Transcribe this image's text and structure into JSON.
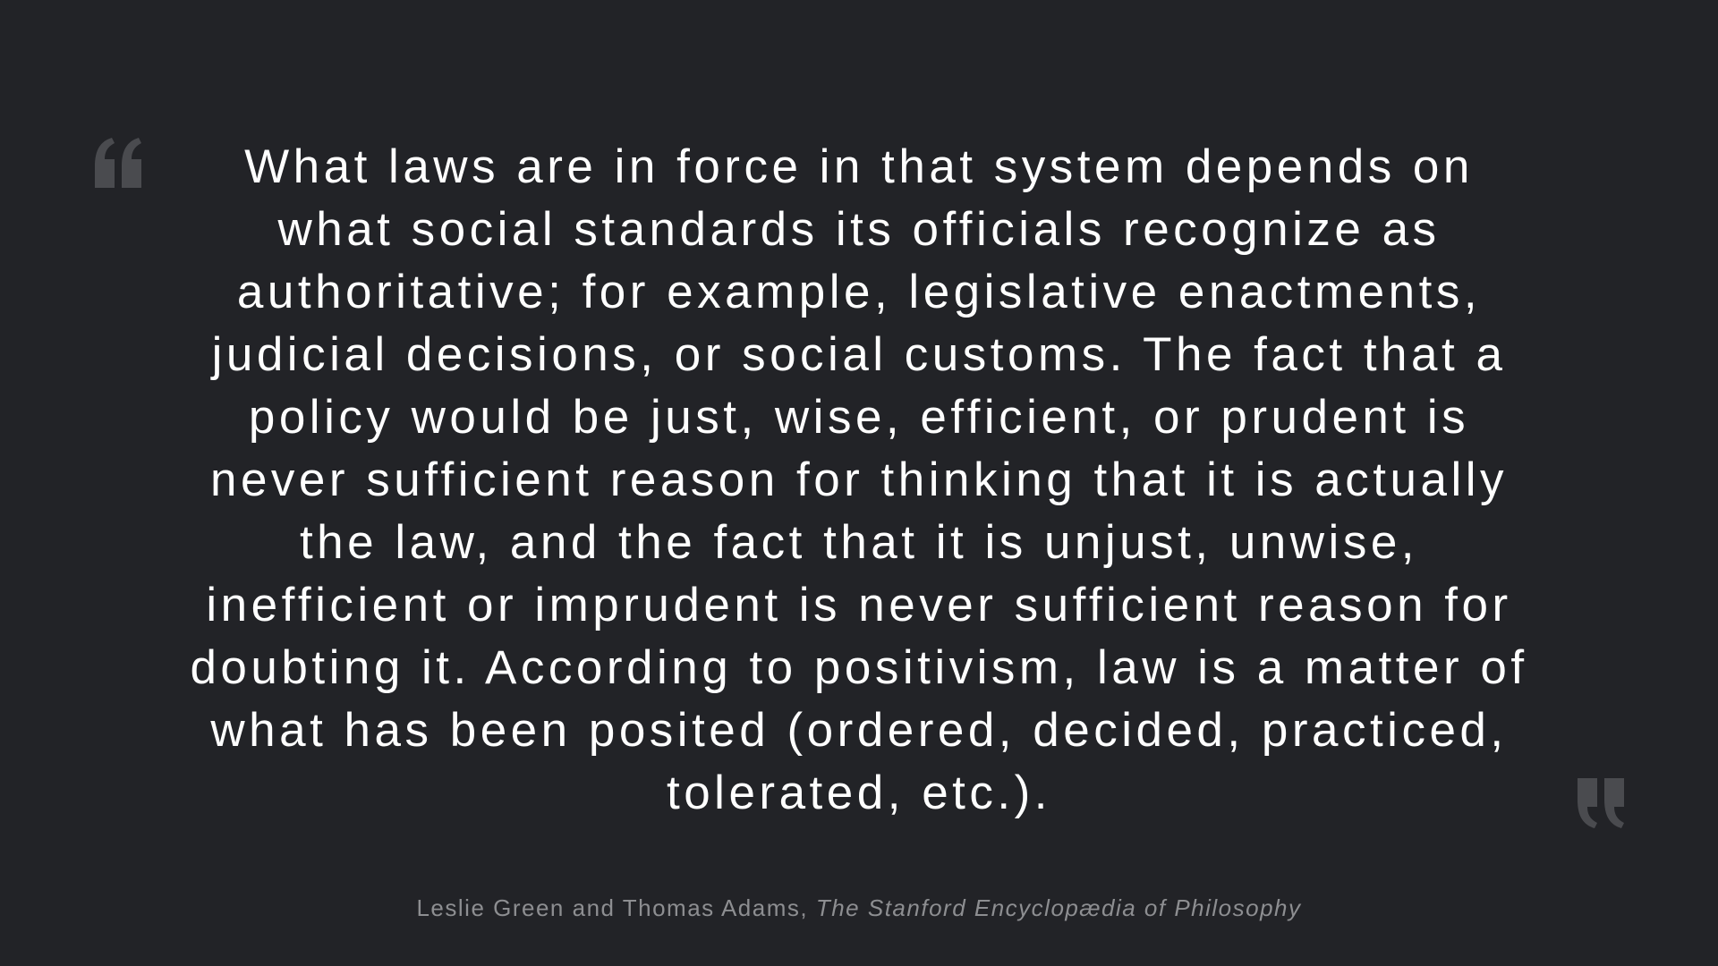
{
  "quote": {
    "text": "What laws are in force in that system depends on what social standards its officials recognize as authoritative; for example, legislative enactments, judicial decisions, or social customs. The fact that a policy would be just, wise, efficient, or prudent is never sufficient reason for thinking that it is actually the law, and the fact that it is unjust, unwise, inefficient or imprudent is never sufficient reason for doubting it. According to positivism, law is a matter of what has been posited (ordered, decided, practiced, tolerated, etc.).",
    "authors": "Leslie Green and Thomas Adams,",
    "source": "The Stanford Encyclopædia of Philosophy"
  },
  "icons": {
    "open": "open-quote-icon",
    "close": "close-quote-icon"
  },
  "colors": {
    "background": "#222327",
    "quote_text": "#ffffff",
    "attribution": "#8d8e91",
    "quote_mark": "#4a4b4f"
  }
}
